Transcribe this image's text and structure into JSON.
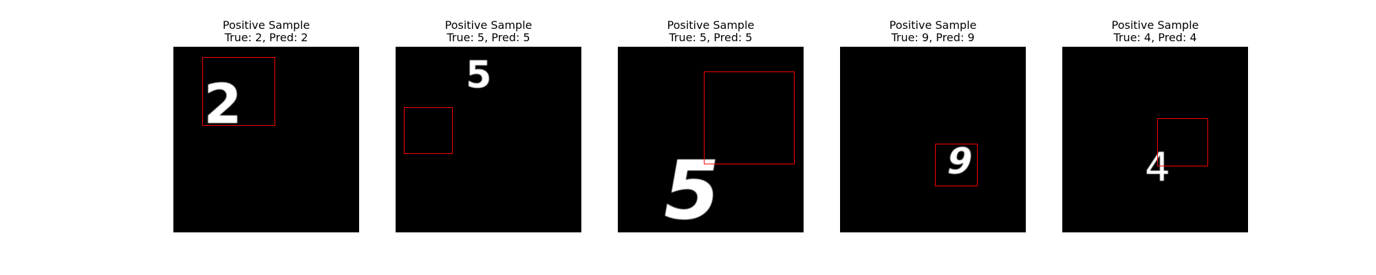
{
  "figure": {
    "panels": [
      {
        "title": "Positive Sample",
        "label": "True: 2, Pred: 2",
        "true_label": 2,
        "pred_label": 2,
        "digit_glyph": "2",
        "box_color": "#ff0000"
      },
      {
        "title": "Positive Sample",
        "label": "True: 5, Pred: 5",
        "true_label": 5,
        "pred_label": 5,
        "digit_glyph": "5",
        "box_color": "#ff0000"
      },
      {
        "title": "Positive Sample",
        "label": "True: 5, Pred: 5",
        "true_label": 5,
        "pred_label": 5,
        "digit_glyph": "5",
        "box_color": "#ff0000"
      },
      {
        "title": "Positive Sample",
        "label": "True: 9, Pred: 9",
        "true_label": 9,
        "pred_label": 9,
        "digit_glyph": "9",
        "box_color": "#ff0000"
      },
      {
        "title": "Positive Sample",
        "label": "True: 4, Pred: 4",
        "true_label": 4,
        "pred_label": 4,
        "digit_glyph": "4",
        "box_color": "#ff0000"
      }
    ]
  }
}
